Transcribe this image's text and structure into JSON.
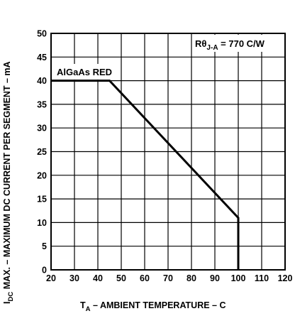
{
  "chart_data": {
    "type": "line",
    "title": "",
    "xlabel": {
      "main": "T",
      "sub": "A",
      "rest": " – AMBIENT TEMPERATURE –  C"
    },
    "ylabel": {
      "main": "I",
      "sub": "DC",
      "rest": " MAX. – MAXIMUM DC CURRENT PER SEGMENT – mA"
    },
    "xlim": [
      20,
      120
    ],
    "ylim": [
      0,
      50
    ],
    "xticks": [
      20,
      30,
      40,
      50,
      60,
      70,
      80,
      90,
      100,
      110,
      120
    ],
    "yticks": [
      0,
      5,
      10,
      15,
      20,
      25,
      30,
      35,
      40,
      45,
      50
    ],
    "grid": true,
    "series": [
      {
        "name": "AlGaAs RED",
        "x": [
          20,
          45,
          100,
          100
        ],
        "y": [
          40,
          40,
          11,
          0
        ]
      }
    ],
    "annotations": {
      "thermal": {
        "main": "R",
        "theta": "θ",
        "sub": "J-A",
        "rest": " = 770 C/W"
      }
    },
    "colors": {
      "line": "#000000",
      "grid": "#000000",
      "background": "#ffffff"
    }
  }
}
